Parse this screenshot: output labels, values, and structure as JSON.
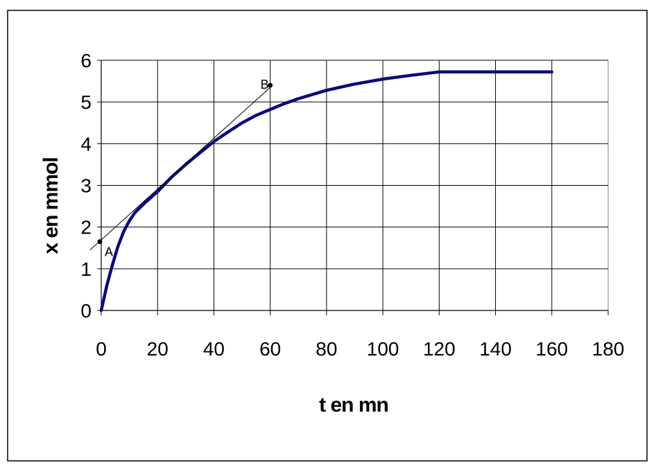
{
  "chart_data": {
    "type": "line",
    "title": "",
    "xlabel": "t en mn",
    "ylabel": "x en mmol",
    "xlim": [
      0,
      180
    ],
    "ylim": [
      0,
      6
    ],
    "xticks": [
      "0",
      "20",
      "40",
      "60",
      "80",
      "100",
      "120",
      "140",
      "160",
      "180"
    ],
    "yticks": [
      "0",
      "1",
      "2",
      "3",
      "4",
      "5",
      "6"
    ],
    "grid": true,
    "legend": "none",
    "series": [
      {
        "color": "#0a0a7a",
        "x": [
          0,
          2,
          4,
          6,
          8,
          10,
          12,
          15,
          20,
          25,
          30,
          35,
          40,
          45,
          50,
          55,
          60,
          65,
          70,
          80,
          90,
          100,
          110,
          120,
          130,
          140,
          150,
          160
        ],
        "y": [
          0,
          0.6,
          1.1,
          1.55,
          1.9,
          2.15,
          2.35,
          2.55,
          2.85,
          3.2,
          3.5,
          3.78,
          4.05,
          4.28,
          4.5,
          4.68,
          4.82,
          4.96,
          5.08,
          5.28,
          5.43,
          5.55,
          5.64,
          5.72,
          5.72,
          5.72,
          5.72,
          5.72
        ]
      }
    ],
    "tangent": {
      "x": [
        -4,
        60
      ],
      "y": [
        1.45,
        5.35
      ]
    },
    "points": [
      {
        "label": "A",
        "x": -0.5,
        "y": 1.65
      },
      {
        "label": "B",
        "x": 60,
        "y": 5.4
      }
    ]
  }
}
